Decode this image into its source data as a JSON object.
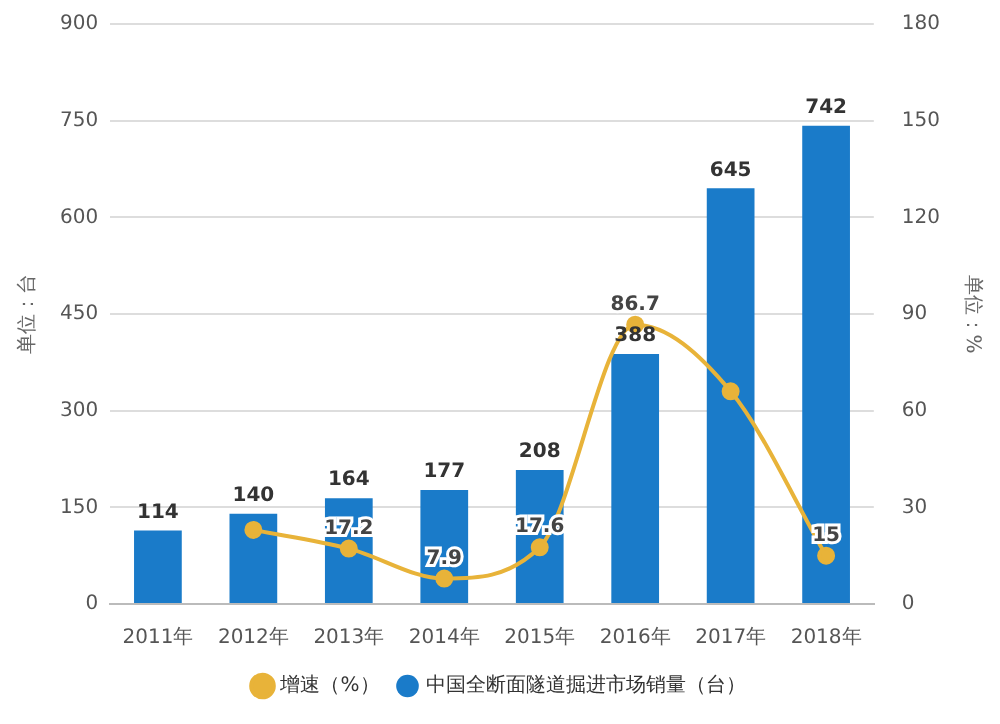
{
  "chart_data": {
    "type": "bar",
    "categories": [
      "2011年",
      "2012年",
      "2013年",
      "2014年",
      "2015年",
      "2016年",
      "2017年",
      "2018年"
    ],
    "ylabel": "单位：台",
    "y2label": "单位：%",
    "series": [
      {
        "name": "中国全断面隧道掘进市场销量（台）",
        "color": "#1a7bc9",
        "values": [
          114,
          140,
          164,
          177,
          208,
          388,
          645,
          742
        ],
        "value_labels": [
          "114",
          "140",
          "164",
          "177",
          "208",
          "388",
          "645",
          "742"
        ]
      },
      {
        "name": "增速（%）",
        "type": "line",
        "axis": "y2",
        "color": "#e8b339",
        "values": [
          null,
          23,
          17.2,
          7.9,
          17.6,
          86.7,
          66,
          15
        ],
        "value_labels": [
          null,
          null,
          "17.2",
          "7.9",
          "17.6",
          "86.7",
          null,
          "15"
        ]
      }
    ],
    "ylim": [
      0,
      900
    ],
    "yticks": [
      0,
      150,
      300,
      450,
      600,
      750,
      900
    ],
    "y2lim": [
      0,
      180
    ],
    "y2ticks": [
      0,
      30,
      60,
      90,
      120,
      150,
      180
    ],
    "grid": "y",
    "legend": "bottom",
    "marker": "circle"
  }
}
